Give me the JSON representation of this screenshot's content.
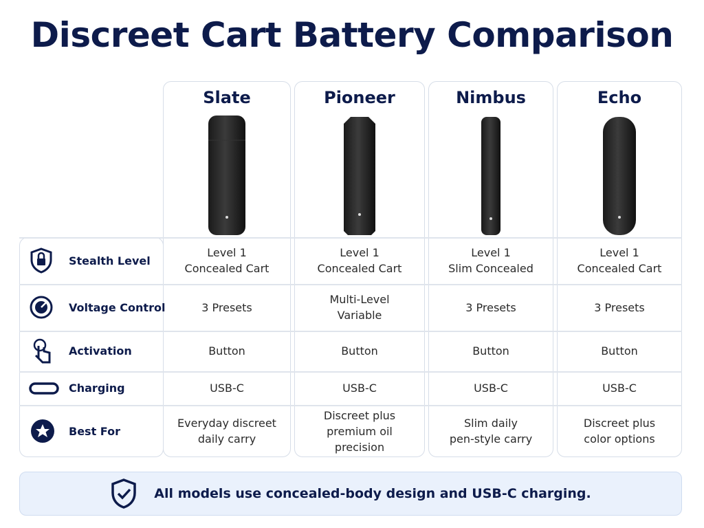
{
  "title": "Discreet Cart Battery Comparison",
  "products": [
    "Slate",
    "Pioneer",
    "Nimbus",
    "Echo"
  ],
  "rows": [
    {
      "label": "Stealth Level",
      "cells": [
        [
          "Level 1",
          "Concealed Cart"
        ],
        [
          "Level 1",
          "Concealed Cart"
        ],
        [
          "Level 1",
          "Slim Concealed"
        ],
        [
          "Level 1",
          "Concealed Cart"
        ]
      ]
    },
    {
      "label": "Voltage Control",
      "cells": [
        [
          "3 Presets"
        ],
        [
          "Multi-Level",
          "Variable"
        ],
        [
          "3 Presets"
        ],
        [
          "3 Presets"
        ]
      ]
    },
    {
      "label": "Activation",
      "cells": [
        [
          "Button"
        ],
        [
          "Button"
        ],
        [
          "Button"
        ],
        [
          "Button"
        ]
      ]
    },
    {
      "label": "Charging",
      "cells": [
        [
          "USB-C"
        ],
        [
          "USB-C"
        ],
        [
          "USB-C"
        ],
        [
          "USB-C"
        ]
      ]
    },
    {
      "label": "Best For",
      "cells": [
        [
          "Everyday discreet",
          "daily carry"
        ],
        [
          "Discreet plus",
          "premium oil",
          "precision"
        ],
        [
          "Slim daily",
          "pen-style carry"
        ],
        [
          "Discreet plus",
          "color options"
        ]
      ]
    }
  ],
  "footer": "All models use concealed-body design and USB-C charging."
}
